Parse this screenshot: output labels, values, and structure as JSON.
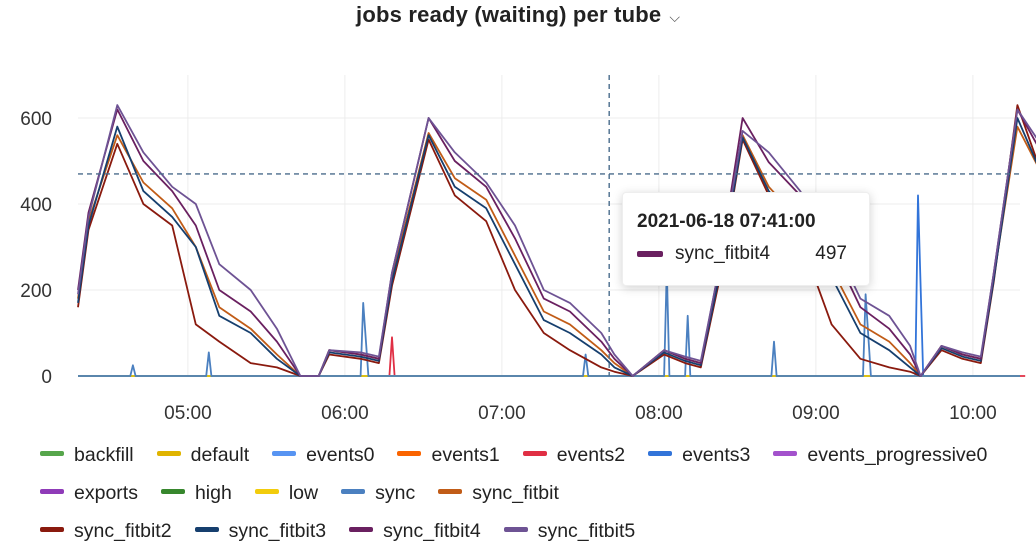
{
  "header": {
    "title": "jobs ready (waiting) per tube",
    "menu_icon": "chevron-down-icon"
  },
  "tooltip": {
    "time": "2021-06-18 07:41:00",
    "series": "sync_fitbit4",
    "value": "497",
    "color": "#6a2060"
  },
  "chart_data": {
    "type": "line",
    "title": "jobs ready (waiting) per tube",
    "xlabel": "",
    "ylabel": "",
    "xlim": [
      "04:18",
      "10:18"
    ],
    "ylim": [
      0,
      700
    ],
    "x_ticks": [
      "05:00",
      "06:00",
      "07:00",
      "08:00",
      "09:00",
      "10:00"
    ],
    "y_ticks": [
      0,
      200,
      400,
      600
    ],
    "grid": true,
    "legend_position": "bottom",
    "crosshair": {
      "time": "07:41",
      "value": 470
    },
    "series": [
      {
        "name": "backfill",
        "color": "#56a64b",
        "values": [
          [
            0,
            0
          ],
          [
            360,
            0
          ]
        ]
      },
      {
        "name": "default",
        "color": "#e0b400",
        "values": [
          [
            0,
            0
          ],
          [
            360,
            0
          ]
        ]
      },
      {
        "name": "events0",
        "color": "#5794f2",
        "values": [
          [
            0,
            0
          ],
          [
            360,
            0
          ]
        ]
      },
      {
        "name": "events1",
        "color": "#fa6400",
        "values": [
          [
            0,
            0
          ],
          [
            360,
            0
          ]
        ]
      },
      {
        "name": "events2",
        "color": "#e02f44",
        "values": [
          [
            0,
            0
          ],
          [
            119,
            0
          ],
          [
            120,
            90
          ],
          [
            121,
            0
          ],
          [
            362,
            0
          ]
        ]
      },
      {
        "name": "events3",
        "color": "#3274d9",
        "values": [
          [
            0,
            0
          ],
          [
            320,
            0
          ],
          [
            321,
            420
          ],
          [
            323,
            0
          ],
          [
            360,
            0
          ]
        ]
      },
      {
        "name": "events_progressive0",
        "color": "#a352cc",
        "values": [
          [
            0,
            0
          ],
          [
            360,
            0
          ]
        ]
      },
      {
        "name": "exports",
        "color": "#8f3bb8",
        "values": [
          [
            0,
            0
          ],
          [
            360,
            0
          ]
        ]
      },
      {
        "name": "high",
        "color": "#37872d",
        "values": [
          [
            0,
            0
          ],
          [
            360,
            0
          ]
        ]
      },
      {
        "name": "low",
        "color": "#f2cc0c",
        "values": [
          [
            0,
            0
          ],
          [
            360,
            0
          ]
        ]
      },
      {
        "name": "sync",
        "color": "#4b80c0",
        "values": [
          [
            0,
            0
          ],
          [
            20,
            0
          ],
          [
            21,
            25
          ],
          [
            22,
            0
          ],
          [
            49,
            0
          ],
          [
            50,
            55
          ],
          [
            51,
            0
          ],
          [
            108,
            0
          ],
          [
            109,
            170
          ],
          [
            111,
            0
          ],
          [
            193,
            0
          ],
          [
            194,
            50
          ],
          [
            195,
            0
          ],
          [
            224,
            0
          ],
          [
            225,
            250
          ],
          [
            226,
            0
          ],
          [
            232,
            0
          ],
          [
            233,
            140
          ],
          [
            234,
            0
          ],
          [
            265,
            0
          ],
          [
            266,
            80
          ],
          [
            267,
            0
          ],
          [
            300,
            0
          ],
          [
            301,
            190
          ],
          [
            303,
            0
          ],
          [
            360,
            0
          ]
        ]
      },
      {
        "name": "sync_fitbit",
        "color": "#c15c17",
        "values": [
          [
            0,
            180
          ],
          [
            4,
            360
          ],
          [
            15,
            560
          ],
          [
            25,
            450
          ],
          [
            36,
            390
          ],
          [
            45,
            300
          ],
          [
            54,
            160
          ],
          [
            66,
            110
          ],
          [
            76,
            50
          ],
          [
            85,
            0
          ],
          [
            92,
            0
          ],
          [
            96,
            60
          ],
          [
            108,
            50
          ],
          [
            115,
            40
          ],
          [
            120,
            230
          ],
          [
            134,
            565
          ],
          [
            144,
            460
          ],
          [
            156,
            410
          ],
          [
            167,
            280
          ],
          [
            178,
            150
          ],
          [
            188,
            120
          ],
          [
            200,
            60
          ],
          [
            205,
            30
          ],
          [
            212,
            0
          ],
          [
            224,
            60
          ],
          [
            232,
            40
          ],
          [
            238,
            30
          ],
          [
            245,
            240
          ],
          [
            254,
            560
          ],
          [
            264,
            440
          ],
          [
            276,
            360
          ],
          [
            288,
            250
          ],
          [
            299,
            120
          ],
          [
            310,
            80
          ],
          [
            318,
            30
          ],
          [
            322,
            0
          ],
          [
            330,
            70
          ],
          [
            338,
            50
          ],
          [
            345,
            40
          ],
          [
            350,
            230
          ],
          [
            359,
            580
          ],
          [
            370,
            450
          ],
          [
            382,
            380
          ],
          [
            394,
            270
          ],
          [
            405,
            140
          ],
          [
            416,
            110
          ],
          [
            426,
            50
          ],
          [
            432,
            0
          ],
          [
            437,
            10
          ]
        ]
      },
      {
        "name": "sync_fitbit2",
        "color": "#8a1a0e",
        "values": [
          [
            0,
            160
          ],
          [
            4,
            340
          ],
          [
            15,
            540
          ],
          [
            25,
            400
          ],
          [
            36,
            350
          ],
          [
            45,
            120
          ],
          [
            54,
            80
          ],
          [
            66,
            30
          ],
          [
            76,
            20
          ],
          [
            85,
            0
          ],
          [
            92,
            0
          ],
          [
            96,
            50
          ],
          [
            108,
            40
          ],
          [
            115,
            30
          ],
          [
            120,
            210
          ],
          [
            134,
            550
          ],
          [
            144,
            420
          ],
          [
            156,
            360
          ],
          [
            167,
            200
          ],
          [
            178,
            100
          ],
          [
            188,
            60
          ],
          [
            200,
            20
          ],
          [
            205,
            10
          ],
          [
            212,
            0
          ],
          [
            224,
            50
          ],
          [
            232,
            30
          ],
          [
            238,
            20
          ],
          [
            245,
            220
          ],
          [
            254,
            550
          ],
          [
            264,
            420
          ],
          [
            276,
            320
          ],
          [
            288,
            120
          ],
          [
            299,
            40
          ],
          [
            310,
            20
          ],
          [
            318,
            10
          ],
          [
            322,
            0
          ],
          [
            330,
            60
          ],
          [
            338,
            40
          ],
          [
            345,
            30
          ],
          [
            350,
            220
          ],
          [
            359,
            630
          ],
          [
            370,
            440
          ],
          [
            382,
            360
          ],
          [
            394,
            200
          ],
          [
            405,
            60
          ],
          [
            416,
            40
          ],
          [
            426,
            10
          ],
          [
            432,
            0
          ],
          [
            437,
            5
          ]
        ]
      },
      {
        "name": "sync_fitbit3",
        "color": "#163f6e",
        "values": [
          [
            0,
            170
          ],
          [
            4,
            350
          ],
          [
            15,
            580
          ],
          [
            25,
            430
          ],
          [
            36,
            370
          ],
          [
            45,
            300
          ],
          [
            54,
            140
          ],
          [
            66,
            100
          ],
          [
            76,
            40
          ],
          [
            85,
            0
          ],
          [
            92,
            0
          ],
          [
            96,
            55
          ],
          [
            108,
            45
          ],
          [
            115,
            35
          ],
          [
            120,
            220
          ],
          [
            134,
            560
          ],
          [
            144,
            440
          ],
          [
            156,
            390
          ],
          [
            167,
            260
          ],
          [
            178,
            130
          ],
          [
            188,
            100
          ],
          [
            200,
            50
          ],
          [
            205,
            20
          ],
          [
            212,
            0
          ],
          [
            224,
            55
          ],
          [
            232,
            35
          ],
          [
            238,
            25
          ],
          [
            245,
            230
          ],
          [
            254,
            555
          ],
          [
            264,
            430
          ],
          [
            276,
            340
          ],
          [
            288,
            230
          ],
          [
            299,
            100
          ],
          [
            310,
            60
          ],
          [
            318,
            20
          ],
          [
            322,
            0
          ],
          [
            330,
            65
          ],
          [
            338,
            45
          ],
          [
            345,
            35
          ],
          [
            350,
            225
          ],
          [
            359,
            600
          ],
          [
            370,
            445
          ],
          [
            382,
            370
          ],
          [
            394,
            250
          ],
          [
            405,
            120
          ],
          [
            416,
            90
          ],
          [
            426,
            40
          ],
          [
            432,
            0
          ],
          [
            437,
            10
          ]
        ]
      },
      {
        "name": "sync_fitbit4",
        "color": "#6a2060",
        "values": [
          [
            0,
            200
          ],
          [
            4,
            380
          ],
          [
            15,
            620
          ],
          [
            25,
            500
          ],
          [
            36,
            430
          ],
          [
            45,
            350
          ],
          [
            54,
            200
          ],
          [
            66,
            150
          ],
          [
            76,
            80
          ],
          [
            85,
            0
          ],
          [
            92,
            0
          ],
          [
            96,
            60
          ],
          [
            108,
            50
          ],
          [
            115,
            40
          ],
          [
            120,
            240
          ],
          [
            134,
            600
          ],
          [
            144,
            500
          ],
          [
            156,
            440
          ],
          [
            167,
            320
          ],
          [
            178,
            180
          ],
          [
            188,
            150
          ],
          [
            200,
            80
          ],
          [
            205,
            40
          ],
          [
            212,
            0
          ],
          [
            224,
            60
          ],
          [
            232,
            40
          ],
          [
            238,
            30
          ],
          [
            245,
            250
          ],
          [
            254,
            600
          ],
          [
            264,
            497
          ],
          [
            276,
            420
          ],
          [
            288,
            300
          ],
          [
            299,
            160
          ],
          [
            310,
            110
          ],
          [
            318,
            50
          ],
          [
            322,
            0
          ],
          [
            330,
            70
          ],
          [
            338,
            50
          ],
          [
            345,
            40
          ],
          [
            350,
            240
          ],
          [
            359,
            620
          ],
          [
            370,
            500
          ],
          [
            382,
            440
          ],
          [
            394,
            320
          ],
          [
            405,
            180
          ],
          [
            416,
            140
          ],
          [
            426,
            70
          ],
          [
            432,
            0
          ],
          [
            437,
            50
          ]
        ]
      },
      {
        "name": "sync_fitbit5",
        "color": "#6e5394",
        "values": [
          [
            0,
            190
          ],
          [
            4,
            370
          ],
          [
            15,
            630
          ],
          [
            25,
            520
          ],
          [
            36,
            440
          ],
          [
            45,
            400
          ],
          [
            54,
            260
          ],
          [
            66,
            200
          ],
          [
            76,
            110
          ],
          [
            85,
            0
          ],
          [
            92,
            0
          ],
          [
            96,
            60
          ],
          [
            108,
            55
          ],
          [
            115,
            45
          ],
          [
            120,
            240
          ],
          [
            134,
            600
          ],
          [
            144,
            520
          ],
          [
            156,
            450
          ],
          [
            167,
            350
          ],
          [
            178,
            200
          ],
          [
            188,
            170
          ],
          [
            200,
            100
          ],
          [
            205,
            50
          ],
          [
            212,
            0
          ],
          [
            224,
            60
          ],
          [
            232,
            45
          ],
          [
            238,
            35
          ],
          [
            245,
            250
          ],
          [
            254,
            570
          ],
          [
            264,
            520
          ],
          [
            276,
            430
          ],
          [
            288,
            320
          ],
          [
            299,
            180
          ],
          [
            310,
            140
          ],
          [
            318,
            70
          ],
          [
            322,
            0
          ],
          [
            330,
            70
          ],
          [
            338,
            55
          ],
          [
            345,
            45
          ],
          [
            350,
            240
          ],
          [
            359,
            620
          ],
          [
            370,
            520
          ],
          [
            382,
            450
          ],
          [
            394,
            350
          ],
          [
            405,
            200
          ],
          [
            416,
            170
          ],
          [
            426,
            90
          ],
          [
            432,
            0
          ],
          [
            437,
            30
          ]
        ]
      }
    ]
  }
}
